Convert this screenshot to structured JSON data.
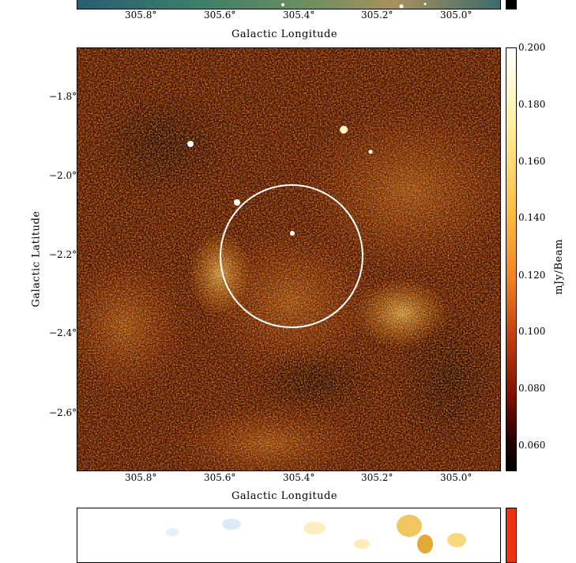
{
  "top_panel": {
    "x_ticks": [
      "305.8°",
      "305.6°",
      "305.4°",
      "305.2°",
      "305.0°"
    ],
    "x_axis_title": "Galactic Longitude"
  },
  "main_panel": {
    "x_ticks": [
      "305.8°",
      "305.6°",
      "305.4°",
      "305.2°",
      "305.0°"
    ],
    "y_ticks": [
      "−1.8°",
      "−2.0°",
      "−2.2°",
      "−2.4°",
      "−2.6°"
    ],
    "x_axis_title": "Galactic Longitude",
    "y_axis_title": "Galactic Latitude",
    "colorbar": {
      "unit_label": "mJy/Beam",
      "ticks": [
        "0.200",
        "0.180",
        "0.160",
        "0.140",
        "0.120",
        "0.100",
        "0.080",
        "0.060"
      ],
      "colors": [
        "#ffffff",
        "#fff0a0",
        "#ffc040",
        "#f08020",
        "#c04010",
        "#801000",
        "#300000",
        "#000000"
      ]
    },
    "overlay": {
      "shape": "circle",
      "color": "#ffffff"
    }
  },
  "bottom_panel": {
    "colorbar_color": "#f03010"
  }
}
